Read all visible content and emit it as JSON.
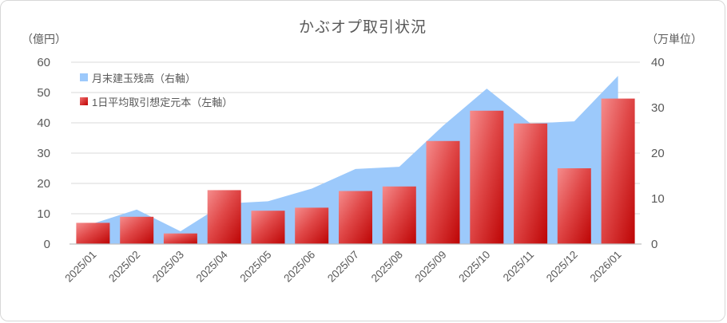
{
  "chart_title": "かぶオプ取引状況",
  "colors": {
    "area_fill": "#9cc9fb",
    "bar_gradient_top": "#f58c8c",
    "bar_gradient_mid": "#e04848",
    "bar_gradient_bottom": "#bd0404",
    "grid_line": "#d9d9d9",
    "axis_line": "#bfbfbf",
    "text": "#595959"
  },
  "chart_data": {
    "type": "combo",
    "title": "かぶオプ取引状況",
    "grid": true,
    "legend_position": "top-left",
    "categories": [
      "2025/01",
      "2025/02",
      "2025/03",
      "2025/04",
      "2025/05",
      "2025/06",
      "2025/07",
      "2025/08",
      "2025/09",
      "2025/10",
      "2025/11",
      "2025/12",
      "2026/01"
    ],
    "series": [
      {
        "name": "月末建玉残高（右軸）",
        "type": "area",
        "axis": "right",
        "color": "#9cc9fb",
        "values": [
          4.5,
          7.6,
          2.8,
          8.9,
          9.4,
          12.2,
          16.5,
          17.0,
          26.0,
          34.2,
          26.5,
          27.0,
          37.0
        ]
      },
      {
        "name": "1日平均取引想定元本（左軸）",
        "type": "bar",
        "axis": "left",
        "color": "#cc1111",
        "values": [
          7,
          9,
          3.5,
          17.8,
          11,
          12,
          17.5,
          19,
          34,
          44,
          39.8,
          25,
          48
        ]
      }
    ],
    "left_axis": {
      "label": "（億円）",
      "min": 0,
      "max": 60,
      "step": 10,
      "ticks": [
        0,
        10,
        20,
        30,
        40,
        50,
        60
      ]
    },
    "right_axis": {
      "label": "（万単位）",
      "min": 0,
      "max": 40,
      "step": 10,
      "ticks": [
        0,
        10,
        20,
        30,
        40
      ]
    }
  }
}
